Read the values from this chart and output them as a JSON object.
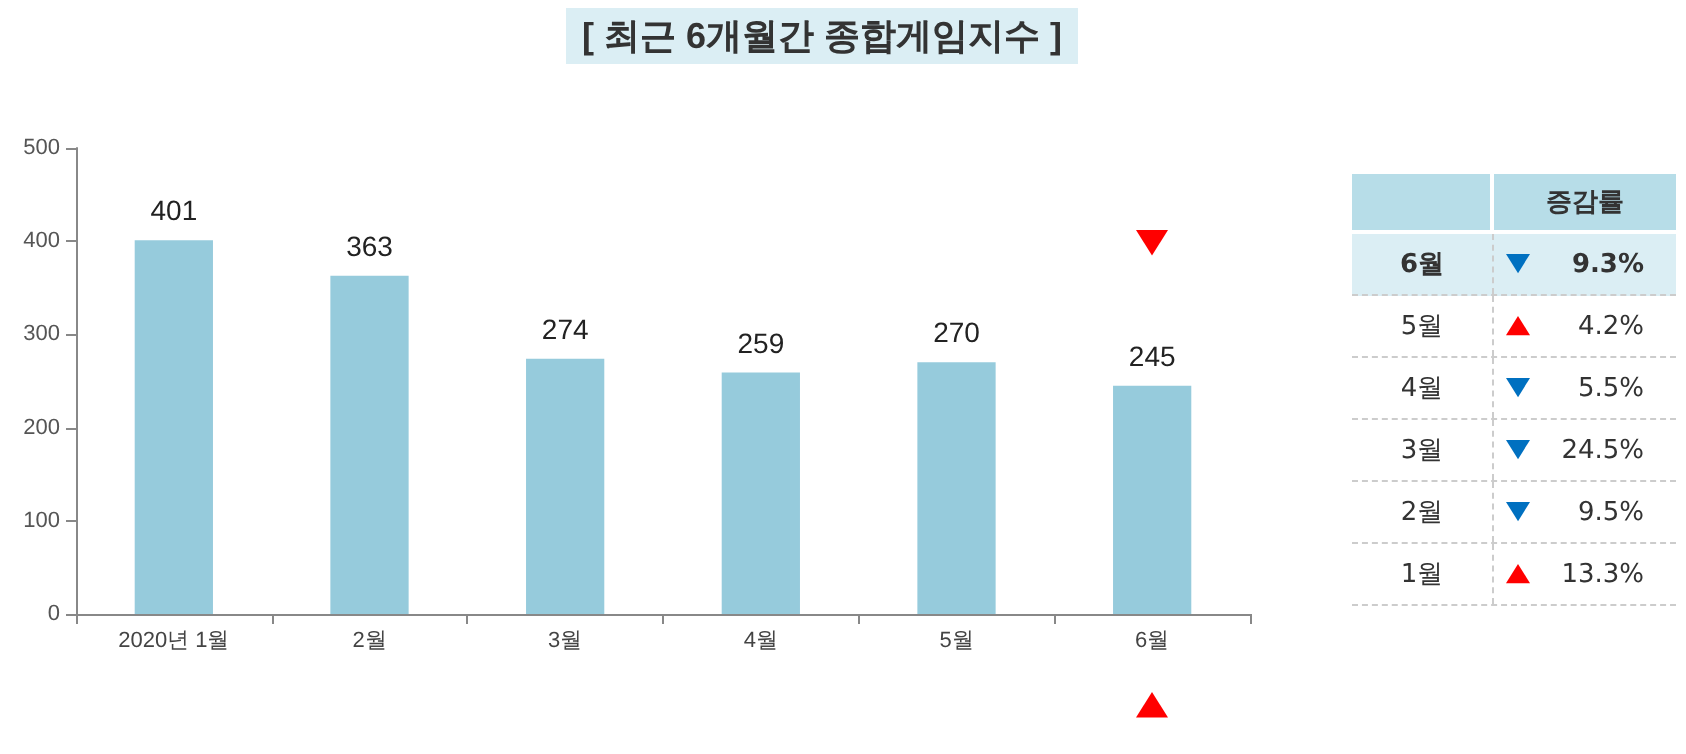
{
  "chart_data": {
    "type": "bar",
    "title": "[ 최근 6개월간 종합게임지수 ]",
    "categories": [
      "2020년 1월",
      "2월",
      "3월",
      "4월",
      "5월",
      "6월"
    ],
    "values": [
      401,
      363,
      274,
      259,
      270,
      245
    ],
    "color": "#96cbdc",
    "ylim": [
      0,
      500
    ],
    "yticks": [
      0,
      100,
      200,
      300,
      400,
      500
    ],
    "grid": false,
    "data_labels": true,
    "annotations": [
      "증감률",
      "6월",
      "9.3%",
      "5월",
      "4.2%",
      "4월",
      "5.5%",
      "3월",
      "24.5%",
      "2월",
      "9.5%",
      "1월",
      "13.3%"
    ]
  }
}
